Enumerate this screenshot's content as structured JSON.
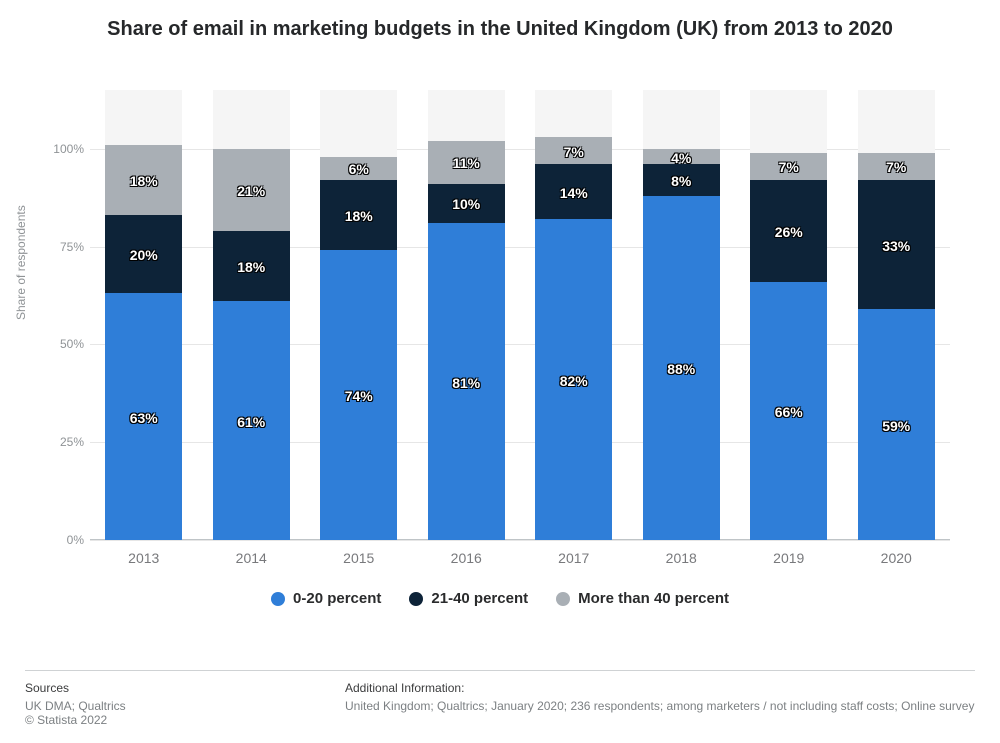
{
  "title": "Share of email in marketing budgets in the United Kingdom (UK) from 2013 to 2020",
  "yaxis": {
    "label": "Share of respondents",
    "ticks": [
      0,
      25,
      50,
      75,
      100
    ],
    "tick_suffix": "%",
    "max_display": 115,
    "label_fontsize": 12,
    "label_color": "#8f9396"
  },
  "xaxis": {
    "categories": [
      "2013",
      "2014",
      "2015",
      "2016",
      "2017",
      "2018",
      "2019",
      "2020"
    ]
  },
  "series": [
    {
      "name": "0-20 percent",
      "color": "#2f7ed8",
      "values": [
        63,
        61,
        74,
        81,
        82,
        88,
        66,
        59
      ]
    },
    {
      "name": "21-40 percent",
      "color": "#0d2338",
      "values": [
        20,
        18,
        18,
        10,
        14,
        8,
        26,
        33
      ]
    },
    {
      "name": "More than 40 percent",
      "color": "#a9afb5",
      "values": [
        18,
        21,
        6,
        11,
        7,
        4,
        7,
        7
      ]
    }
  ],
  "chart": {
    "type": "stacked-bar",
    "bar_fill_ratio": 0.72,
    "background_color": "#ffffff",
    "plot_bg_band_color": "#f5f5f5",
    "gridline_color": "#e6e6e6",
    "value_suffix": "%",
    "value_label_fontsize": 14,
    "value_label_color": "#ffffff",
    "value_label_outline": "#000000",
    "xaxis_line_color": "#bfc4c7"
  },
  "legend": {
    "position": "bottom",
    "fontsize": 15,
    "font_weight": "bold",
    "color": "#2a2b2c"
  },
  "footer": {
    "sources_head": "Sources",
    "sources_lines": [
      "UK DMA; Qualtrics",
      "© Statista 2022"
    ],
    "info_head": "Additional Information:",
    "info_text": "United Kingdom; Qualtrics; January 2020; 236 respondents; among marketers / not including staff costs; Online survey"
  }
}
